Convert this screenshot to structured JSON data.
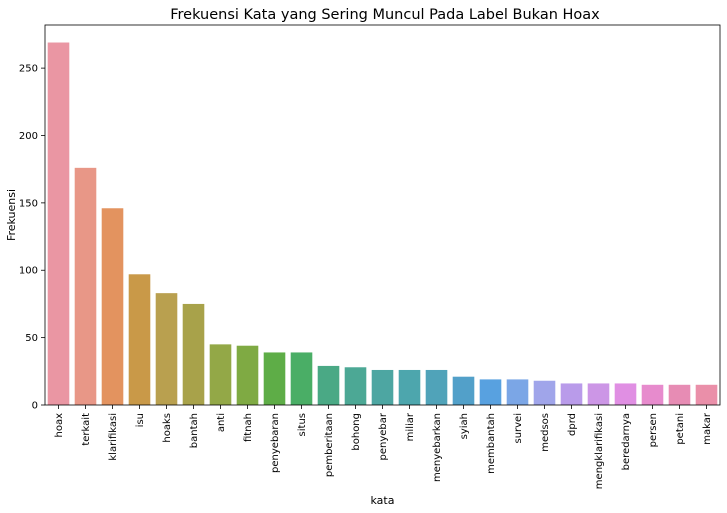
{
  "chart_data": {
    "type": "bar",
    "title": "Frekuensi Kata yang Sering Muncul Pada Label Bukan Hoax",
    "xlabel": "kata",
    "ylabel": "Frekuensi",
    "ylim": [
      0,
      282
    ],
    "yticks": [
      0,
      50,
      100,
      150,
      200,
      250
    ],
    "grid": false,
    "categories": [
      "hoax",
      "terkait",
      "klarifikasi",
      "isu",
      "hoaks",
      "bantah",
      "anti",
      "fitnah",
      "penyebaran",
      "situs",
      "pemberitaan",
      "bohong",
      "penyebar",
      "miliar",
      "menyebarkan",
      "syiah",
      "membantah",
      "survei",
      "medsos",
      "dprd",
      "mengklarifikasi",
      "beredarnya",
      "persen",
      "petani",
      "makar"
    ],
    "values": [
      269,
      176,
      146,
      97,
      83,
      75,
      45,
      44,
      39,
      39,
      29,
      28,
      26,
      26,
      26,
      21,
      19,
      19,
      18,
      16,
      16,
      16,
      15,
      15,
      15
    ],
    "colors": [
      "#ea96a3",
      "#e89787",
      "#e3935f",
      "#c99948",
      "#b9a04f",
      "#a8a24a",
      "#93a847",
      "#7faa43",
      "#5ead47",
      "#4aae66",
      "#4aa985",
      "#4ca895",
      "#4da6a2",
      "#4da6ad",
      "#50a3b9",
      "#52a0c9",
      "#58a1e0",
      "#7ba6e6",
      "#a0a5ea",
      "#b99bea",
      "#cc96e6",
      "#e08fe3",
      "#e78bcd",
      "#e78cb4",
      "#ea8fa9"
    ]
  }
}
